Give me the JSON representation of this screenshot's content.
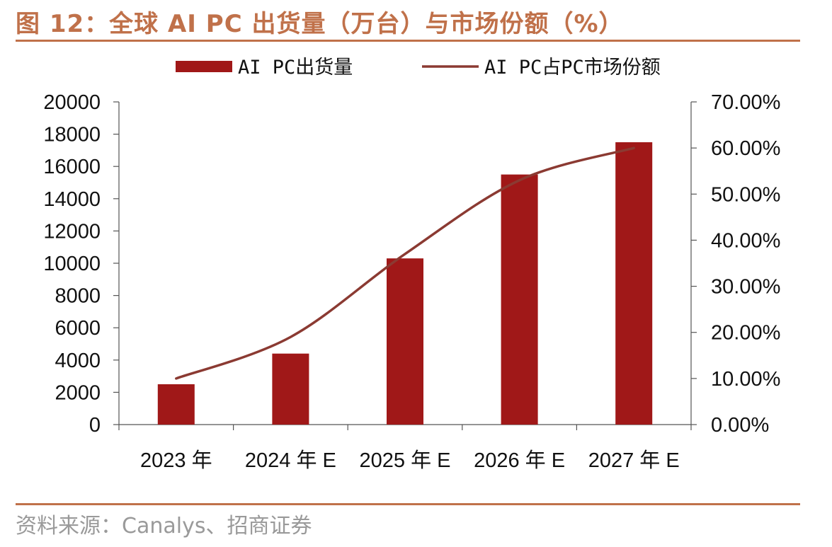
{
  "figure_title": "图 12：全球 AI PC 出货量（万台）与市场份额（%）",
  "source_note": "资料来源：Canalys、招商证券",
  "colors": {
    "bar": "#a01818",
    "line": "#8b3a32",
    "accent": "#c0714a"
  },
  "chart_data": {
    "type": "bar+line",
    "categories": [
      "2023 年",
      "2024 年 E",
      "2025 年 E",
      "2026 年 E",
      "2027 年 E"
    ],
    "series": [
      {
        "name": "AI PC出货量",
        "type": "bar",
        "axis": "left",
        "values": [
          2500,
          4400,
          10300,
          15500,
          17500
        ]
      },
      {
        "name": "AI PC占PC市场份额",
        "type": "line",
        "axis": "right",
        "values": [
          0.1,
          0.19,
          0.37,
          0.53,
          0.6
        ]
      }
    ],
    "y_left": {
      "min": 0,
      "max": 20000,
      "ticks": [
        "0",
        "2000",
        "4000",
        "6000",
        "8000",
        "10000",
        "12000",
        "14000",
        "16000",
        "18000",
        "20000"
      ]
    },
    "y_right": {
      "min": 0,
      "max": 0.7,
      "ticks": [
        "0.00%",
        "10.00%",
        "20.00%",
        "30.00%",
        "40.00%",
        "50.00%",
        "60.00%",
        "70.00%"
      ]
    },
    "grid": false,
    "legend_position": "top"
  }
}
